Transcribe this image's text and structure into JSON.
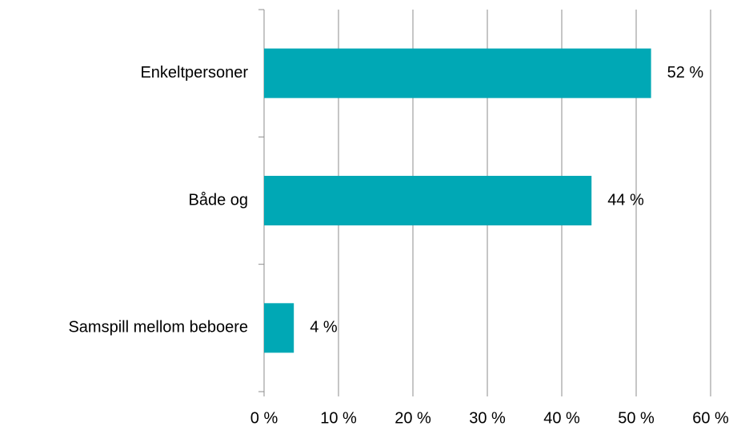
{
  "chart_data": {
    "type": "bar",
    "orientation": "horizontal",
    "categories": [
      "Enkeltpersoner",
      "Både og",
      "Samspill mellom beboere"
    ],
    "values": [
      52,
      44,
      4
    ],
    "value_labels": [
      "52 %",
      "44 %",
      "4 %"
    ],
    "color": "#00a8b5",
    "xlim": [
      0,
      60
    ],
    "xticks": [
      {
        "value": 0,
        "label": "0 %"
      },
      {
        "value": 10,
        "label": "10 %"
      },
      {
        "value": 20,
        "label": "20 %"
      },
      {
        "value": 30,
        "label": "30 %"
      },
      {
        "value": 40,
        "label": "40 %"
      },
      {
        "value": 50,
        "label": "50 %"
      },
      {
        "value": 60,
        "label": "60 %"
      }
    ],
    "grid": true
  }
}
